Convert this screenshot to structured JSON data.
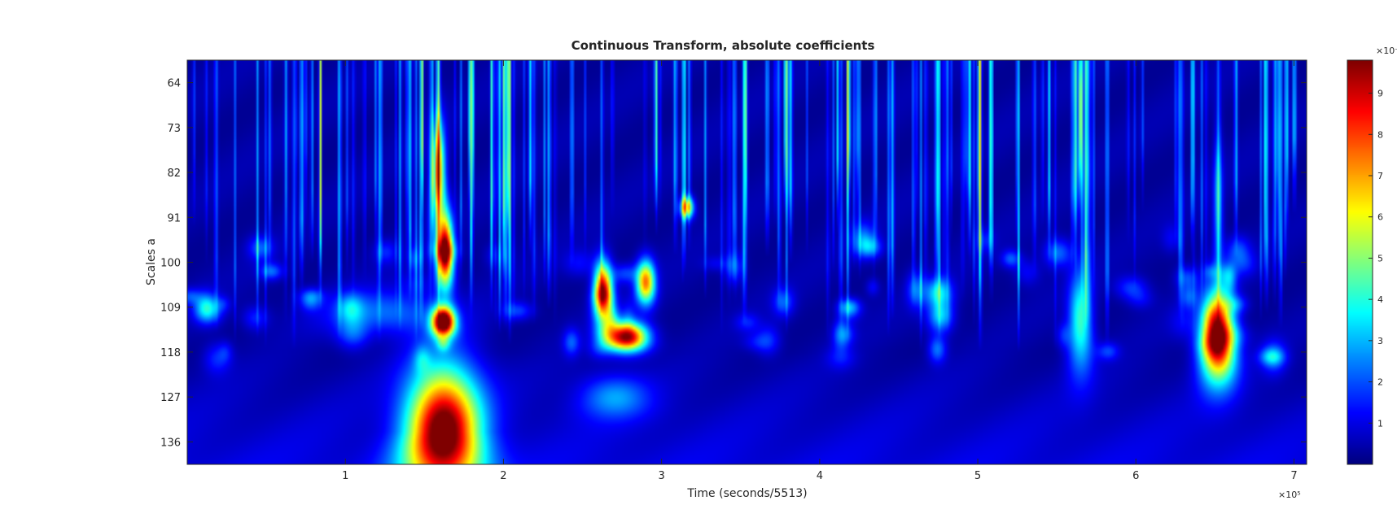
{
  "chart_data": {
    "type": "heatmap",
    "title": "Continuous Transform, absolute coefficients",
    "xlabel": "Time (seconds/5513)",
    "ylabel": "Scales a",
    "x_exponent_label": "×10⁵",
    "xlim": [
      0,
      7.08
    ],
    "x_ticks": [
      {
        "value": 1,
        "label": "1"
      },
      {
        "value": 2,
        "label": "2"
      },
      {
        "value": 3,
        "label": "3"
      },
      {
        "value": 4,
        "label": "4"
      },
      {
        "value": 5,
        "label": "5"
      },
      {
        "value": 6,
        "label": "6"
      },
      {
        "value": 7,
        "label": "7"
      }
    ],
    "ylim": [
      59.5,
      140.5
    ],
    "y_direction": "reversed",
    "y_ticks": [
      {
        "value": 64,
        "label": "64"
      },
      {
        "value": 73,
        "label": "73"
      },
      {
        "value": 82,
        "label": "82"
      },
      {
        "value": 91,
        "label": "91"
      },
      {
        "value": 100,
        "label": "100"
      },
      {
        "value": 109,
        "label": "109"
      },
      {
        "value": 118,
        "label": "118"
      },
      {
        "value": 127,
        "label": "127"
      },
      {
        "value": 136,
        "label": "136"
      }
    ],
    "colormap": "jet",
    "colorbar": {
      "exponent_label": "×10⁻⁶",
      "range": [
        0,
        9.8
      ],
      "ticks": [
        {
          "value": 1,
          "label": "1"
        },
        {
          "value": 2,
          "label": "2"
        },
        {
          "value": 3,
          "label": "3"
        },
        {
          "value": 4,
          "label": "4"
        },
        {
          "value": 5,
          "label": "5"
        },
        {
          "value": 6,
          "label": "6"
        },
        {
          "value": 7,
          "label": "7"
        },
        {
          "value": 8,
          "label": "8"
        },
        {
          "value": 9,
          "label": "9"
        }
      ]
    },
    "features": [
      {
        "time": 1.62,
        "scale_center": 134,
        "scale_spread": 9,
        "time_spread": 0.16,
        "magnitude": 10
      },
      {
        "time": 1.62,
        "scale_center": 112,
        "scale_spread": 2,
        "time_spread": 0.05,
        "magnitude": 9
      },
      {
        "time": 1.63,
        "scale_center": 98,
        "scale_spread": 5,
        "time_spread": 0.035,
        "magnitude": 9.5
      },
      {
        "time": 1.59,
        "scale_center": 82,
        "scale_spread": 7,
        "time_spread": 0.03,
        "magnitude": 6
      },
      {
        "time": 2.63,
        "scale_center": 106,
        "scale_spread": 4,
        "time_spread": 0.04,
        "magnitude": 9
      },
      {
        "time": 2.78,
        "scale_center": 115,
        "scale_spread": 2,
        "time_spread": 0.09,
        "magnitude": 9.5
      },
      {
        "time": 2.9,
        "scale_center": 104,
        "scale_spread": 3,
        "time_spread": 0.04,
        "magnitude": 7
      },
      {
        "time": 3.16,
        "scale_center": 89,
        "scale_spread": 1.5,
        "time_spread": 0.03,
        "magnitude": 6
      },
      {
        "time": 5.65,
        "scale_center": 112,
        "scale_spread": 7,
        "time_spread": 0.05,
        "magnitude": 4
      },
      {
        "time": 5.65,
        "scale_center": 70,
        "scale_spread": 10,
        "time_spread": 0.008,
        "magnitude": 4.5
      },
      {
        "time": 6.52,
        "scale_center": 115,
        "scale_spread": 6,
        "time_spread": 0.07,
        "magnitude": 10
      },
      {
        "time": 6.52,
        "scale_center": 88,
        "scale_spread": 10,
        "time_spread": 0.02,
        "magnitude": 2.5
      },
      {
        "time": 2.7,
        "scale_center": 127,
        "scale_spread": 3,
        "time_spread": 0.15,
        "magnitude": 2.2
      },
      {
        "time": 1.25,
        "scale_center": 110,
        "scale_spread": 3,
        "time_spread": 0.25,
        "magnitude": 2
      },
      {
        "time": 0.12,
        "scale_center": 109,
        "scale_spread": 2,
        "time_spread": 0.05,
        "magnitude": 2.5
      },
      {
        "time": 4.75,
        "scale_center": 106,
        "scale_spread": 2,
        "time_spread": 0.06,
        "magnitude": 3
      }
    ]
  }
}
